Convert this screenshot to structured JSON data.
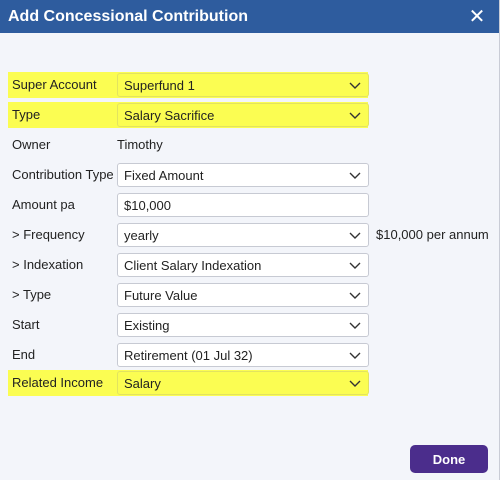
{
  "dialog": {
    "title": "Add Concessional Contribution",
    "close_icon": "close-icon"
  },
  "fields": [
    {
      "key": "super_account",
      "label": "Super Account",
      "value": "Superfund 1",
      "type": "select",
      "highlighted": true
    },
    {
      "key": "type",
      "label": "Type",
      "value": "Salary Sacrifice",
      "type": "select",
      "highlighted": true
    },
    {
      "key": "owner",
      "label": "Owner",
      "value": "Timothy",
      "type": "static",
      "highlighted": false
    },
    {
      "key": "contribution_type",
      "label": "Contribution Type",
      "value": "Fixed Amount",
      "type": "select",
      "highlighted": false
    },
    {
      "key": "amount_pa",
      "label": "Amount pa",
      "value": "$10,000",
      "type": "input",
      "highlighted": false
    },
    {
      "key": "frequency",
      "label": "> Frequency",
      "value": "yearly",
      "type": "select",
      "highlighted": false,
      "after": "$10,000 per annum"
    },
    {
      "key": "indexation",
      "label": "> Indexation",
      "value": "Client Salary Indexation",
      "type": "select",
      "highlighted": false
    },
    {
      "key": "sub_type",
      "label": "> Type",
      "value": "Future Value",
      "type": "select",
      "highlighted": false
    },
    {
      "key": "start",
      "label": "Start",
      "value": "Existing",
      "type": "select",
      "highlighted": false
    },
    {
      "key": "end",
      "label": "End",
      "value": "Retirement (01 Jul 32)",
      "type": "select",
      "highlighted": false
    },
    {
      "key": "related_income",
      "label": "Related Income",
      "value": "Salary",
      "type": "select",
      "highlighted": true
    }
  ],
  "actions": {
    "done_label": "Done"
  },
  "colors": {
    "titlebar": "#2e5c9e",
    "highlight": "#fbfd52",
    "primary_button": "#4b2d8c"
  }
}
